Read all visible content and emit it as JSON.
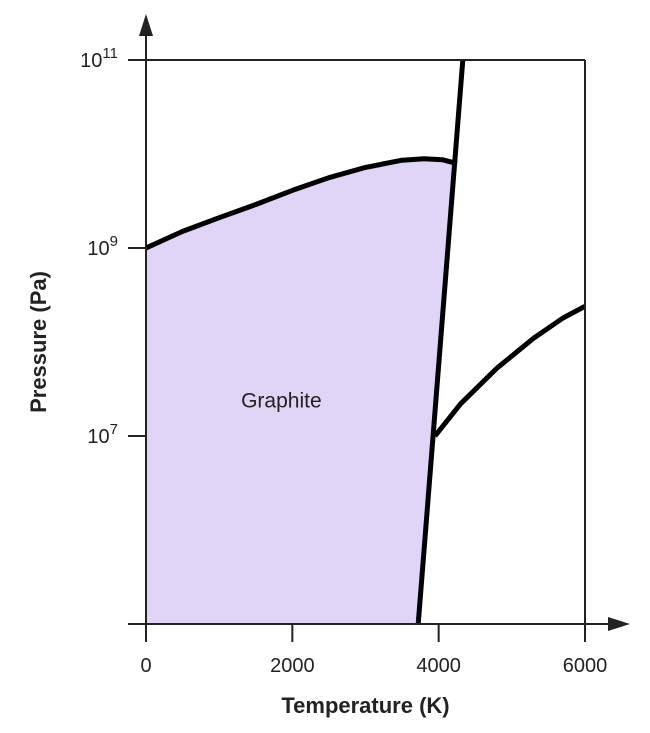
{
  "chart_data": {
    "type": "area",
    "xlabel": "Temperature (K)",
    "ylabel": "Pressure (Pa)",
    "x_scale": "linear",
    "y_scale": "log",
    "xlim": [
      0,
      6000
    ],
    "ylim": [
      100000,
      100000000000
    ],
    "x_ticks": [
      {
        "value": 0,
        "label": "0"
      },
      {
        "value": 2000,
        "label": "2000"
      },
      {
        "value": 4000,
        "label": "4000"
      },
      {
        "value": 6000,
        "label": "6000"
      }
    ],
    "y_ticks": [
      {
        "value": 10000000,
        "base": "10",
        "exp": "7"
      },
      {
        "value": 1000000000,
        "base": "10",
        "exp": "9"
      },
      {
        "value": 100000000000,
        "base": "10",
        "exp": "11"
      }
    ],
    "grid": false,
    "regions": [
      {
        "label": "Graphite",
        "label_at": [
          1850,
          20000000
        ],
        "fill": "#e1d5f7"
      }
    ],
    "series": [
      {
        "points": [
          [
            0,
            1000000000
          ],
          [
            500,
            1500000000
          ],
          [
            1000,
            2100000000
          ],
          [
            1500,
            2900000000
          ],
          [
            2000,
            4100000000
          ],
          [
            2500,
            5600000000
          ],
          [
            3000,
            7200000000
          ],
          [
            3500,
            8600000000
          ],
          [
            3800,
            8900000000
          ],
          [
            4050,
            8700000000
          ],
          [
            4250,
            7900000000
          ]
        ]
      },
      {
        "points": [
          [
            3720,
            100000
          ],
          [
            4330,
            100000000000
          ]
        ]
      },
      {
        "points": [
          [
            3950,
            10000000
          ],
          [
            4300,
            22000000
          ],
          [
            4800,
            53000000
          ],
          [
            5300,
            110000000
          ],
          [
            5700,
            180000000
          ],
          [
            6000,
            240000000
          ]
        ]
      }
    ]
  },
  "colors": {
    "graphite_fill": "#e1d5f7",
    "line": "#000000",
    "axis": "#222222"
  }
}
